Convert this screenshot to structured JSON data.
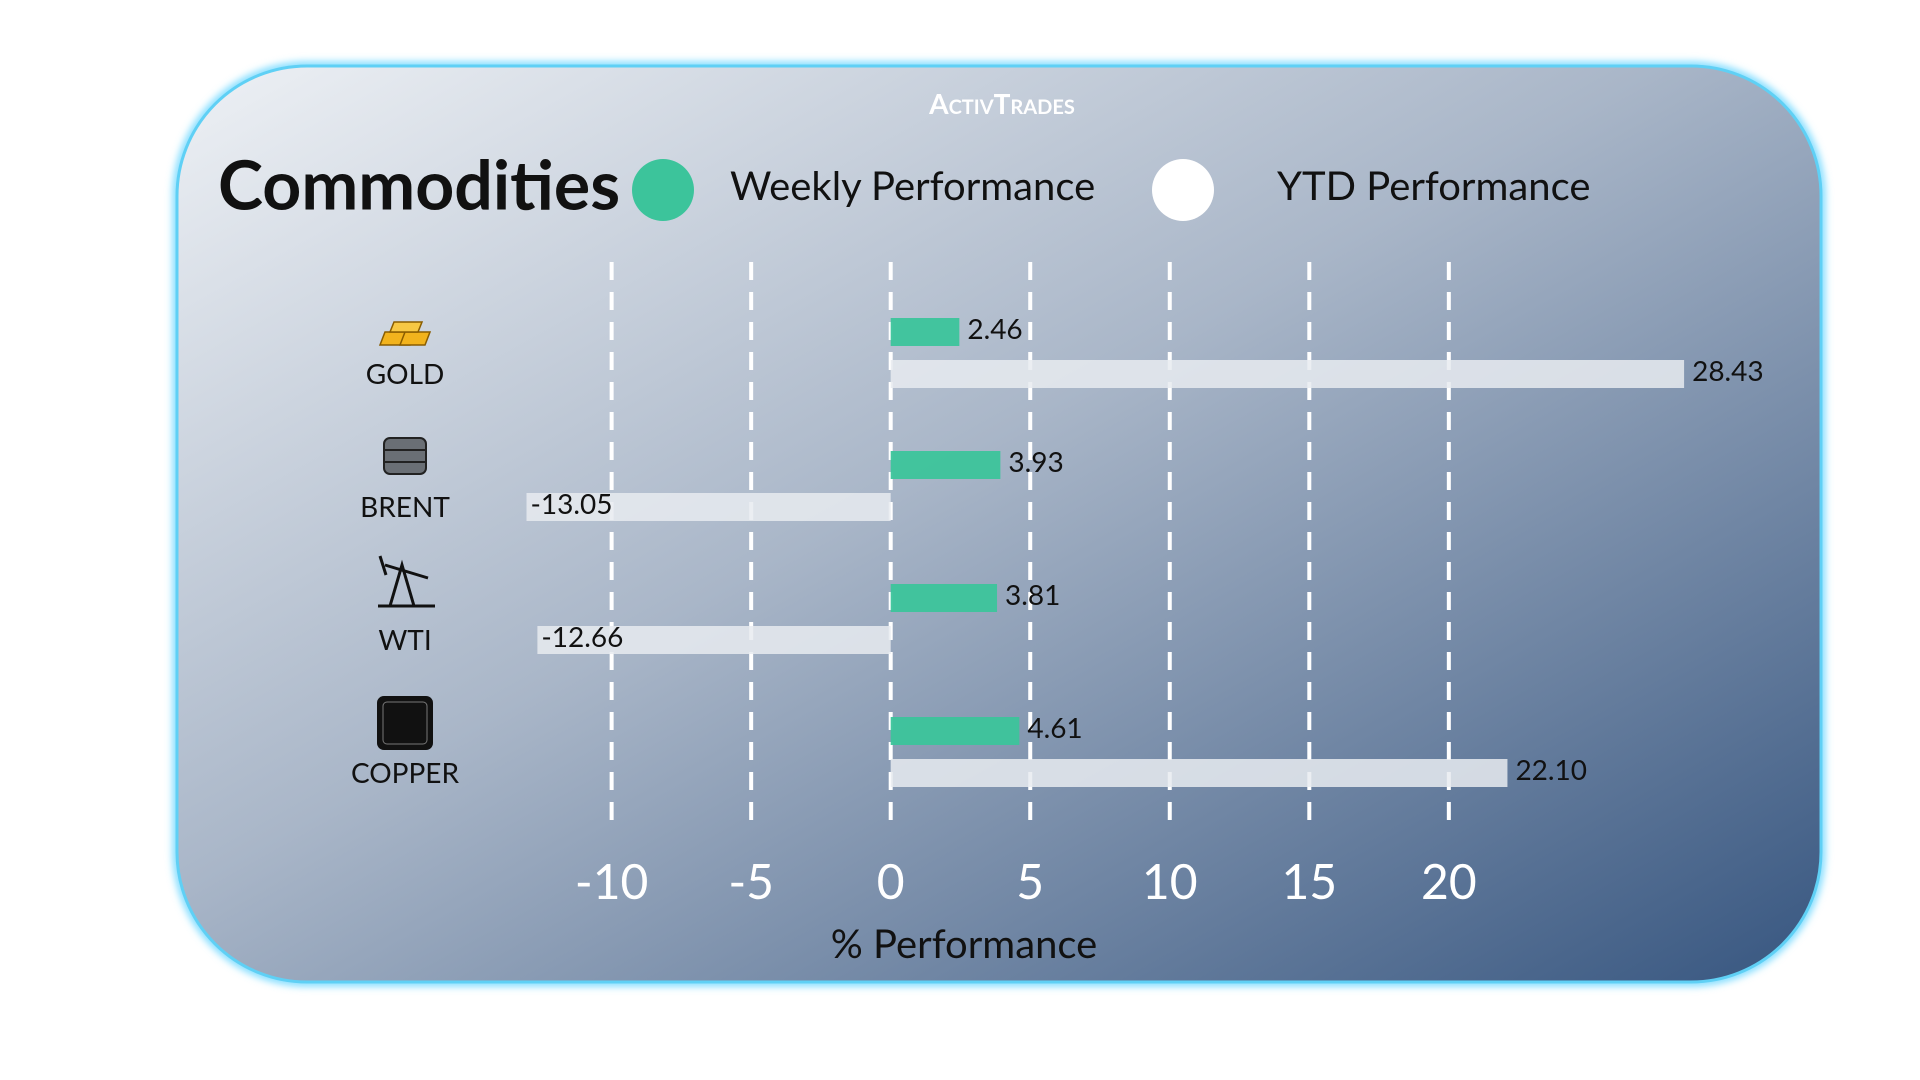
{
  "chart_data": {
    "type": "hbar",
    "brand": "ActivTrades",
    "title": "Commodities",
    "xlabel": "% Performance",
    "categories": [
      "GOLD",
      "BRENT",
      "WTI",
      "COPPER"
    ],
    "series": [
      {
        "name": "Weekly Performance",
        "color": "#3cc49b",
        "values": [
          2.46,
          3.93,
          3.81,
          4.61
        ]
      },
      {
        "name": "YTD Performance",
        "color": "#e8ebf0",
        "values": [
          28.43,
          -13.05,
          -12.66,
          22.1
        ],
        "value_labels": [
          "28.43",
          "-13.05",
          "-12.66",
          "22.10"
        ]
      }
    ],
    "xlim": [
      -14,
      29
    ],
    "xticks": [
      -10,
      -5,
      0,
      5,
      10,
      15,
      20
    ],
    "grid": true
  }
}
